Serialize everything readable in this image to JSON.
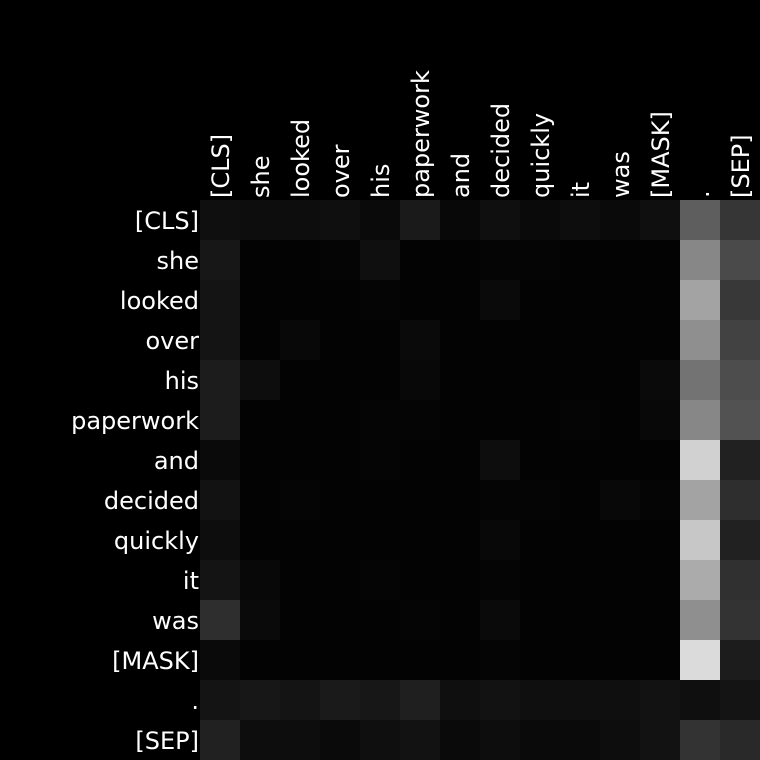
{
  "chart_data": {
    "type": "heatmap",
    "title": "",
    "xlabel": "",
    "ylabel": "",
    "colormap": "grayscale",
    "background": "#000000",
    "value_range": [
      0,
      1
    ],
    "x_tokens": [
      "[CLS]",
      "she",
      "looked",
      "over",
      "his",
      "paperwork",
      "and",
      "decided",
      "quickly",
      "it",
      "was",
      "[MASK]",
      ".",
      "[SEP]"
    ],
    "y_tokens": [
      "[CLS]",
      "she",
      "looked",
      "over",
      "his",
      "paperwork",
      "and",
      "decided",
      "quickly",
      "it",
      "was",
      "[MASK]",
      ".",
      "[SEP]"
    ],
    "values": [
      [
        0.06,
        0.05,
        0.05,
        0.06,
        0.04,
        0.1,
        0.03,
        0.06,
        0.04,
        0.05,
        0.04,
        0.06,
        0.37,
        0.21
      ],
      [
        0.09,
        0.01,
        0.01,
        0.02,
        0.06,
        0.01,
        0.01,
        0.02,
        0.02,
        0.01,
        0.01,
        0.01,
        0.53,
        0.29
      ],
      [
        0.08,
        0.01,
        0.01,
        0.01,
        0.02,
        0.01,
        0.01,
        0.04,
        0.01,
        0.01,
        0.01,
        0.01,
        0.64,
        0.22
      ],
      [
        0.08,
        0.01,
        0.03,
        0.01,
        0.01,
        0.04,
        0.01,
        0.01,
        0.01,
        0.01,
        0.01,
        0.01,
        0.56,
        0.26
      ],
      [
        0.11,
        0.05,
        0.01,
        0.01,
        0.01,
        0.03,
        0.01,
        0.01,
        0.01,
        0.01,
        0.01,
        0.04,
        0.45,
        0.3
      ],
      [
        0.11,
        0.01,
        0.01,
        0.01,
        0.02,
        0.02,
        0.01,
        0.01,
        0.01,
        0.02,
        0.01,
        0.03,
        0.53,
        0.32
      ],
      [
        0.04,
        0.01,
        0.01,
        0.01,
        0.02,
        0.01,
        0.01,
        0.05,
        0.01,
        0.01,
        0.01,
        0.01,
        0.82,
        0.13
      ],
      [
        0.07,
        0.01,
        0.02,
        0.01,
        0.01,
        0.01,
        0.01,
        0.02,
        0.02,
        0.01,
        0.03,
        0.02,
        0.64,
        0.18
      ],
      [
        0.05,
        0.01,
        0.01,
        0.01,
        0.01,
        0.01,
        0.01,
        0.03,
        0.01,
        0.01,
        0.01,
        0.01,
        0.78,
        0.13
      ],
      [
        0.08,
        0.03,
        0.01,
        0.01,
        0.02,
        0.01,
        0.01,
        0.02,
        0.01,
        0.01,
        0.01,
        0.01,
        0.67,
        0.19
      ],
      [
        0.18,
        0.04,
        0.01,
        0.01,
        0.01,
        0.02,
        0.01,
        0.04,
        0.01,
        0.01,
        0.01,
        0.01,
        0.56,
        0.2
      ],
      [
        0.04,
        0.01,
        0.01,
        0.01,
        0.01,
        0.01,
        0.01,
        0.02,
        0.01,
        0.01,
        0.01,
        0.01,
        0.86,
        0.11
      ],
      [
        0.08,
        0.09,
        0.08,
        0.1,
        0.09,
        0.12,
        0.06,
        0.07,
        0.06,
        0.06,
        0.06,
        0.07,
        0.06,
        0.08
      ],
      [
        0.13,
        0.05,
        0.05,
        0.04,
        0.06,
        0.07,
        0.04,
        0.05,
        0.04,
        0.04,
        0.05,
        0.07,
        0.2,
        0.16
      ]
    ]
  }
}
